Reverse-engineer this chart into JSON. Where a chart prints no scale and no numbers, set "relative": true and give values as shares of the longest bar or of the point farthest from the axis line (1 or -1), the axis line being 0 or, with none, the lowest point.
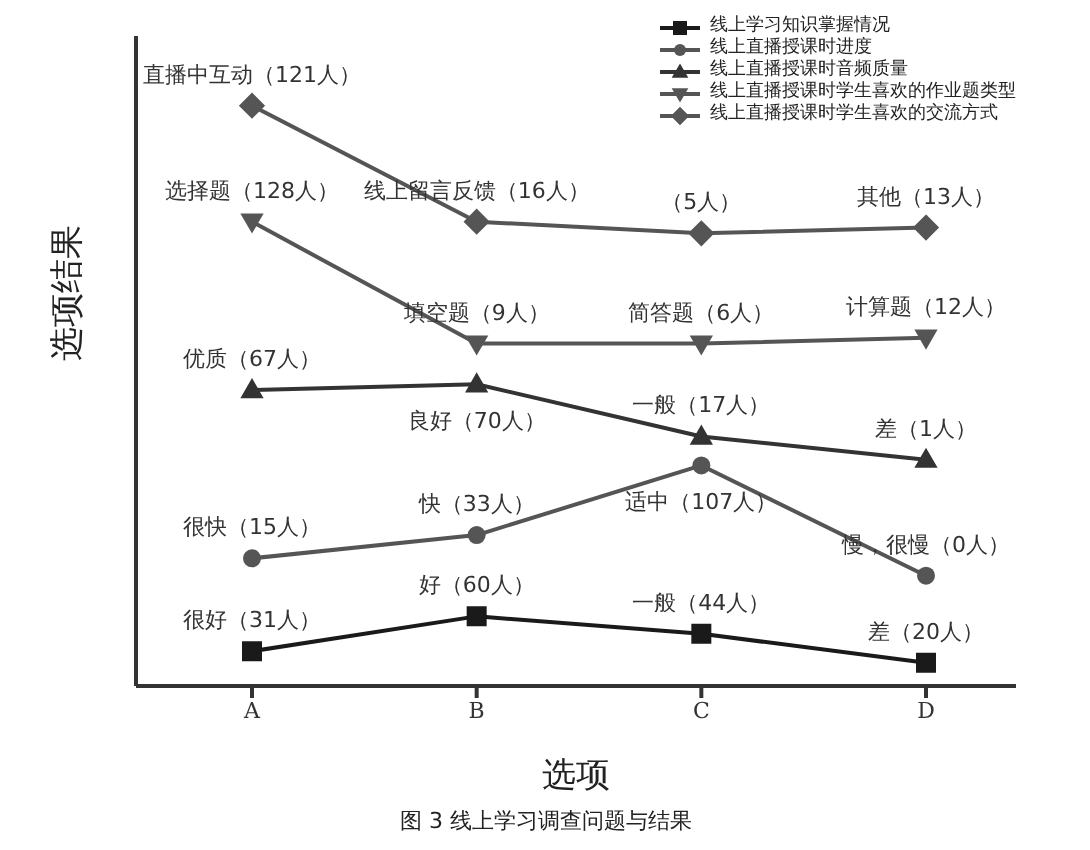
{
  "chart_data": {
    "type": "line",
    "relative": true,
    "xlabel": "选项",
    "ylabel": "选项结果",
    "categories": [
      "A",
      "B",
      "C",
      "D"
    ],
    "legend": "top right",
    "grid": false,
    "line_style": "solid",
    "series": [
      {
        "name": "线上学习知识掌握情况",
        "color": "#1a1a1a",
        "marker": "square",
        "values": [
          0.06,
          0.12,
          0.09,
          0.04
        ]
      },
      {
        "name": "线上直播授课时进度",
        "color": "#555555",
        "marker": "circle",
        "values": [
          0.22,
          0.26,
          0.38,
          0.19
        ]
      },
      {
        "name": "线上直播授课时音频质量",
        "color": "#333333",
        "marker": "triangle",
        "values": [
          0.51,
          0.52,
          0.43,
          0.39
        ]
      },
      {
        "name": "线上直播授课时学生喜欢的作业题类型",
        "color": "#555555",
        "marker": "triangle-down",
        "values": [
          0.8,
          0.59,
          0.59,
          0.6
        ]
      },
      {
        "name": "线上直播授课时学生喜欢的交流方式",
        "color": "#555555",
        "marker": "diamond",
        "values": [
          1,
          0.8,
          0.78,
          0.79
        ]
      }
    ],
    "annotations": [
      "图 3  线上学习调查问题与结果",
      {
        "text": "很好（31人）",
        "x": "A",
        "y": 0.06
      },
      {
        "text": "好（60人）",
        "x": "B",
        "y": 0.12
      },
      {
        "text": "一般（44人）",
        "x": "C",
        "y": 0.09
      },
      {
        "text": "差（20人）",
        "x": "D",
        "y": 0.04
      },
      {
        "text": "很快（15人）",
        "x": "A",
        "y": 0.22
      },
      {
        "text": "快（33人）",
        "x": "B",
        "y": 0.26
      },
      {
        "text": "适中（107人）",
        "x": "C",
        "y": 0.38
      },
      {
        "text": "慢，很慢（0人）",
        "x": "D",
        "y": 0.19
      },
      {
        "text": "优质（67人）",
        "x": "A",
        "y": 0.51
      },
      {
        "text": "良好（70人）",
        "x": "B",
        "y": 0.52
      },
      {
        "text": "一般（17人）",
        "x": "C",
        "y": 0.43
      },
      {
        "text": "差（1人）",
        "x": "D",
        "y": 0.39
      },
      {
        "text": "选择题（128人）",
        "x": "A",
        "y": 0.8
      },
      {
        "text": "填空题（9人）",
        "x": "B",
        "y": 0.59
      },
      {
        "text": "简答题（6人）",
        "x": "C",
        "y": 0.59
      },
      {
        "text": "计算题（12人）",
        "x": "D",
        "y": 0.6
      },
      {
        "text": "直播中互动（121人）",
        "x": "A",
        "y": 1
      },
      {
        "text": "线上留言反馈（16人）",
        "x": "B",
        "y": 0.8
      },
      {
        "text": "（5人）",
        "x": "C",
        "y": 0.78
      },
      {
        "text": "其他（13人）",
        "x": "D",
        "y": 0.79
      }
    ]
  }
}
